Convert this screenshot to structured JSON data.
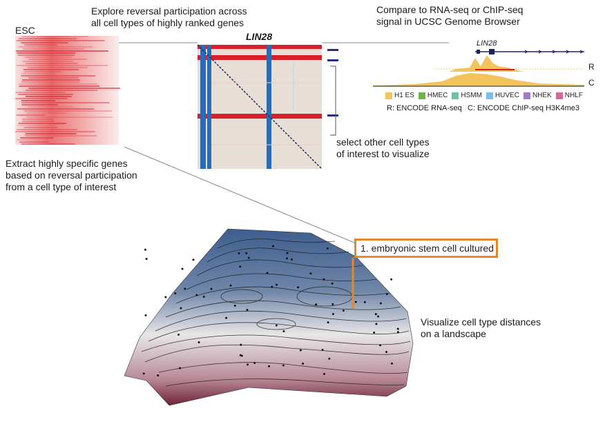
{
  "texts": {
    "explore": [
      "Explore reversal participation across",
      "all cell types of highly ranked genes"
    ],
    "compare": [
      "Compare to RNA-seq or ChIP-seq",
      "signal in UCSC Genome Browser"
    ],
    "esc": "ESC",
    "gene": "LIN28",
    "gene_track": "LIN28",
    "track_r": "R",
    "track_c": "C",
    "extract": [
      "Extract highly specific genes",
      "based on reversal participation",
      "from a cell type of interest"
    ],
    "select": [
      "select other cell types",
      "of interest to visualize"
    ],
    "callout": "1. embryonic stem cell cultured",
    "visualize": [
      "Visualize cell type distances",
      "on a landscape"
    ],
    "legend_note_r": "R: ENCODE RNA-seq",
    "legend_note_c": "C: ENCODE ChIP-seq H3K4me3"
  },
  "legend": [
    {
      "label": "H1 ES",
      "color": "#f3c45a"
    },
    {
      "label": "HMEC",
      "color": "#6fb54a"
    },
    {
      "label": "HSMM",
      "color": "#6cc0a8"
    },
    {
      "label": "HUVEC",
      "color": "#7bbde8"
    },
    {
      "label": "NHEK",
      "color": "#a57bbf"
    },
    {
      "label": "NHLF",
      "color": "#d9669a"
    }
  ],
  "colors": {
    "heat_red": "#d8202a",
    "heat_blue": "#2a6cb4",
    "callout": "#e8862a",
    "marker": "#2a2a86"
  }
}
